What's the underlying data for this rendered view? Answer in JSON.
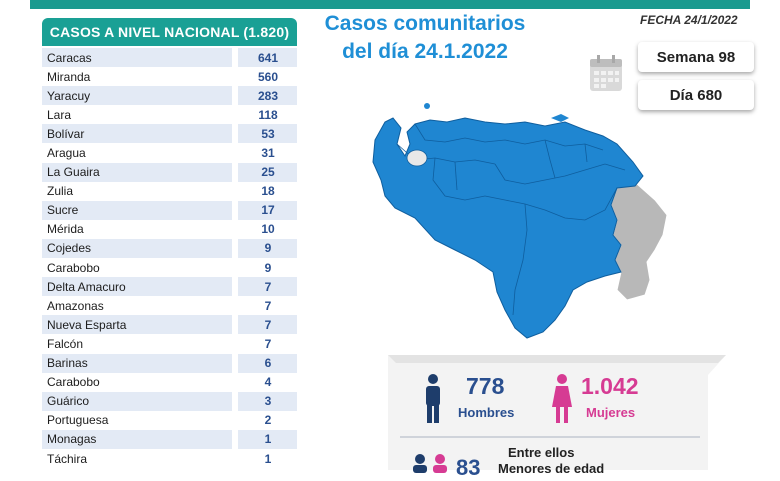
{
  "header": {
    "table_title": "CASOS A NIVEL NACIONAL  (1.820)",
    "title_line1": "Casos comunitarios",
    "title_line2": "del día 24.1.2022",
    "fecha": "FECHA 24/1/2022",
    "semana": "Semana 98",
    "dia": "Día 680"
  },
  "states": [
    {
      "name": "Caracas",
      "value": "641"
    },
    {
      "name": "Miranda",
      "value": "560"
    },
    {
      "name": "Yaracuy",
      "value": "283"
    },
    {
      "name": "Lara",
      "value": "118"
    },
    {
      "name": "Bolívar",
      "value": "53"
    },
    {
      "name": "Aragua",
      "value": "31"
    },
    {
      "name": "La Guaira",
      "value": "25"
    },
    {
      "name": "Zulia",
      "value": "18"
    },
    {
      "name": "Sucre",
      "value": "17"
    },
    {
      "name": "Mérida",
      "value": "10"
    },
    {
      "name": "Cojedes",
      "value": "9"
    },
    {
      "name": "Carabobo",
      "value": "9"
    },
    {
      "name": "Delta Amacuro",
      "value": "7"
    },
    {
      "name": "Amazonas",
      "value": "7"
    },
    {
      "name": "Nueva Esparta",
      "value": "7"
    },
    {
      "name": "Falcón",
      "value": "7"
    },
    {
      "name": "Barinas",
      "value": "6"
    },
    {
      "name": "Carabobo",
      "value": "4"
    },
    {
      "name": "Guárico",
      "value": "3"
    },
    {
      "name": "Portuguesa",
      "value": "2"
    },
    {
      "name": "Monagas",
      "value": "1"
    },
    {
      "name": "Táchira",
      "value": "1"
    }
  ],
  "stats": {
    "hombres_value": "778",
    "hombres_label": "Hombres",
    "mujeres_value": "1.042",
    "mujeres_label": "Mujeres",
    "entre_ellos": "Entre ellos",
    "menores_value": "83",
    "menores_label": "Menores de edad"
  },
  "colors": {
    "teal": "#1aa095",
    "title_blue": "#1f8fd6",
    "map_blue": "#1f86d1",
    "map_grey": "#b8b8b8",
    "male_blue": "#2a4f8f",
    "female_pink": "#d63b93"
  }
}
